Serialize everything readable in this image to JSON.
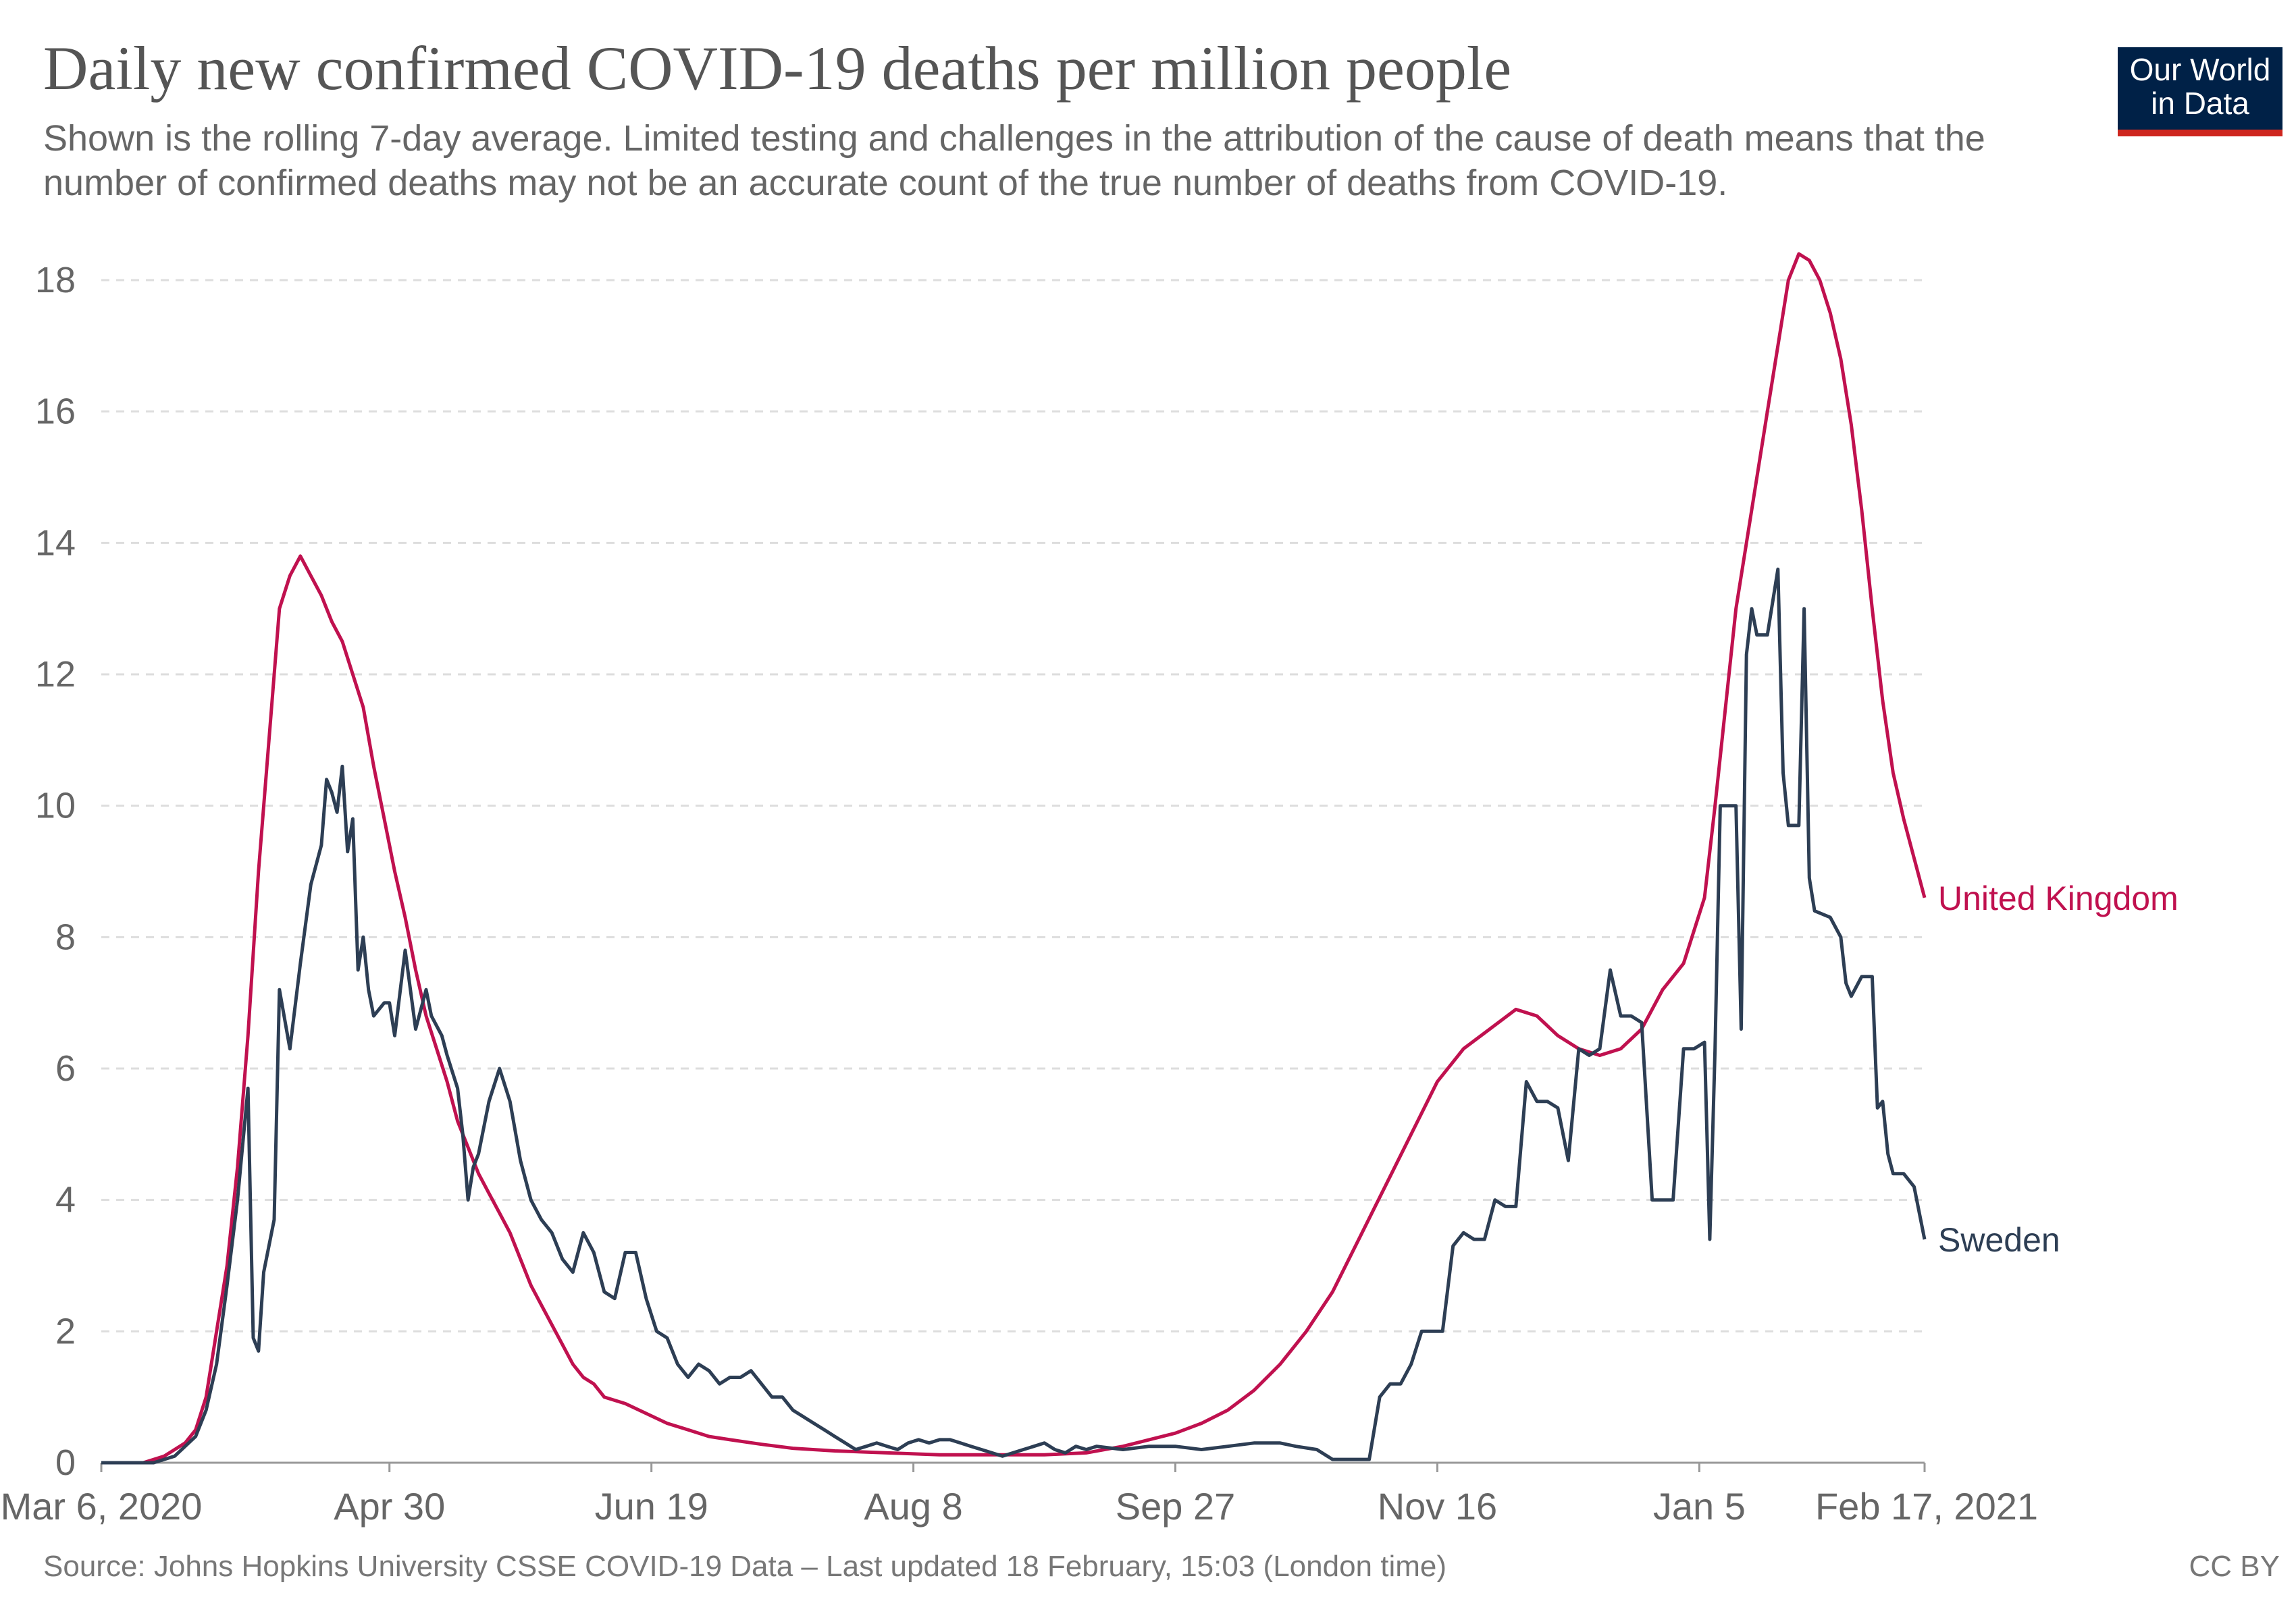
{
  "header": {
    "title": "Daily new confirmed COVID-19 deaths per million people",
    "subtitle": "Shown is the rolling 7-day average. Limited testing and challenges in the attribution of the cause of death means that the number of confirmed deaths may not be an accurate count of the true number of deaths from COVID-19.",
    "logo_text": "Our World in Data"
  },
  "footer": {
    "source": "Source: Johns Hopkins University CSSE COVID-19 Data – Last updated 18 February, 15:03 (London time)",
    "license": "CC BY"
  },
  "chart_data": {
    "type": "line",
    "x_tick_labels": [
      "Mar 6, 2020",
      "Apr 30",
      "Jun 19",
      "Aug 8",
      "Sep 27",
      "Nov 16",
      "Jan 5",
      "Feb 17, 2021"
    ],
    "x_tick_days": [
      0,
      55,
      105,
      155,
      205,
      255,
      305,
      348
    ],
    "x_start_date": "2020-03-06",
    "x_end_date": "2021-02-17",
    "ylim": [
      0,
      18
    ],
    "y_ticks": [
      0,
      2,
      4,
      6,
      8,
      10,
      12,
      14,
      16,
      18
    ],
    "grid": true,
    "legend": "line-end labels",
    "series": [
      {
        "name": "United Kingdom",
        "color": "#c0114f",
        "points": [
          [
            0,
            0
          ],
          [
            8,
            0
          ],
          [
            12,
            0.1
          ],
          [
            16,
            0.3
          ],
          [
            18,
            0.5
          ],
          [
            20,
            1.0
          ],
          [
            22,
            2.0
          ],
          [
            24,
            3.0
          ],
          [
            26,
            4.5
          ],
          [
            28,
            6.5
          ],
          [
            30,
            9.0
          ],
          [
            32,
            11.0
          ],
          [
            34,
            13.0
          ],
          [
            36,
            13.5
          ],
          [
            38,
            13.8
          ],
          [
            40,
            13.5
          ],
          [
            42,
            13.2
          ],
          [
            44,
            12.8
          ],
          [
            46,
            12.5
          ],
          [
            48,
            12.0
          ],
          [
            50,
            11.5
          ],
          [
            52,
            10.6
          ],
          [
            54,
            9.8
          ],
          [
            56,
            9.0
          ],
          [
            58,
            8.3
          ],
          [
            60,
            7.5
          ],
          [
            62,
            6.8
          ],
          [
            64,
            6.3
          ],
          [
            66,
            5.8
          ],
          [
            68,
            5.2
          ],
          [
            70,
            4.8
          ],
          [
            72,
            4.4
          ],
          [
            74,
            4.1
          ],
          [
            76,
            3.8
          ],
          [
            78,
            3.5
          ],
          [
            80,
            3.1
          ],
          [
            82,
            2.7
          ],
          [
            84,
            2.4
          ],
          [
            86,
            2.1
          ],
          [
            88,
            1.8
          ],
          [
            90,
            1.5
          ],
          [
            92,
            1.3
          ],
          [
            94,
            1.2
          ],
          [
            96,
            1.0
          ],
          [
            100,
            0.9
          ],
          [
            104,
            0.75
          ],
          [
            108,
            0.6
          ],
          [
            112,
            0.5
          ],
          [
            116,
            0.4
          ],
          [
            120,
            0.35
          ],
          [
            126,
            0.28
          ],
          [
            132,
            0.22
          ],
          [
            140,
            0.18
          ],
          [
            150,
            0.15
          ],
          [
            160,
            0.12
          ],
          [
            170,
            0.12
          ],
          [
            180,
            0.12
          ],
          [
            188,
            0.15
          ],
          [
            195,
            0.25
          ],
          [
            200,
            0.35
          ],
          [
            205,
            0.45
          ],
          [
            210,
            0.6
          ],
          [
            215,
            0.8
          ],
          [
            220,
            1.1
          ],
          [
            225,
            1.5
          ],
          [
            230,
            2.0
          ],
          [
            235,
            2.6
          ],
          [
            240,
            3.4
          ],
          [
            245,
            4.2
          ],
          [
            250,
            5.0
          ],
          [
            255,
            5.8
          ],
          [
            260,
            6.3
          ],
          [
            265,
            6.6
          ],
          [
            270,
            6.9
          ],
          [
            274,
            6.8
          ],
          [
            278,
            6.5
          ],
          [
            282,
            6.3
          ],
          [
            286,
            6.2
          ],
          [
            290,
            6.3
          ],
          [
            294,
            6.6
          ],
          [
            298,
            7.2
          ],
          [
            302,
            7.6
          ],
          [
            306,
            8.6
          ],
          [
            308,
            10.0
          ],
          [
            310,
            11.5
          ],
          [
            312,
            13.0
          ],
          [
            314,
            14.0
          ],
          [
            316,
            15.0
          ],
          [
            318,
            16.0
          ],
          [
            320,
            17.0
          ],
          [
            322,
            18.0
          ],
          [
            324,
            18.4
          ],
          [
            326,
            18.3
          ],
          [
            328,
            18.0
          ],
          [
            330,
            17.5
          ],
          [
            332,
            16.8
          ],
          [
            334,
            15.8
          ],
          [
            336,
            14.5
          ],
          [
            338,
            13.0
          ],
          [
            340,
            11.6
          ],
          [
            342,
            10.5
          ],
          [
            344,
            9.8
          ],
          [
            346,
            9.2
          ],
          [
            348,
            8.6
          ]
        ]
      },
      {
        "name": "Sweden",
        "color": "#2d3e54",
        "points": [
          [
            0,
            0
          ],
          [
            10,
            0
          ],
          [
            14,
            0.1
          ],
          [
            18,
            0.4
          ],
          [
            20,
            0.8
          ],
          [
            22,
            1.5
          ],
          [
            24,
            2.7
          ],
          [
            26,
            4.0
          ],
          [
            28,
            5.7
          ],
          [
            29,
            1.9
          ],
          [
            30,
            1.7
          ],
          [
            31,
            2.9
          ],
          [
            33,
            3.7
          ],
          [
            34,
            7.2
          ],
          [
            36,
            6.3
          ],
          [
            38,
            7.6
          ],
          [
            40,
            8.8
          ],
          [
            42,
            9.4
          ],
          [
            43,
            10.4
          ],
          [
            44,
            10.2
          ],
          [
            45,
            9.9
          ],
          [
            46,
            10.6
          ],
          [
            47,
            9.3
          ],
          [
            48,
            9.8
          ],
          [
            49,
            7.5
          ],
          [
            50,
            8.0
          ],
          [
            51,
            7.2
          ],
          [
            52,
            6.8
          ],
          [
            54,
            7.0
          ],
          [
            55,
            7.0
          ],
          [
            56,
            6.5
          ],
          [
            58,
            7.8
          ],
          [
            60,
            6.6
          ],
          [
            62,
            7.2
          ],
          [
            63,
            6.8
          ],
          [
            65,
            6.5
          ],
          [
            66,
            6.2
          ],
          [
            68,
            5.7
          ],
          [
            69,
            5.0
          ],
          [
            70,
            4.0
          ],
          [
            71,
            4.5
          ],
          [
            72,
            4.7
          ],
          [
            74,
            5.5
          ],
          [
            76,
            6.0
          ],
          [
            78,
            5.5
          ],
          [
            80,
            4.6
          ],
          [
            82,
            4.0
          ],
          [
            84,
            3.7
          ],
          [
            86,
            3.5
          ],
          [
            88,
            3.1
          ],
          [
            90,
            2.9
          ],
          [
            92,
            3.5
          ],
          [
            94,
            3.2
          ],
          [
            96,
            2.6
          ],
          [
            98,
            2.5
          ],
          [
            100,
            3.2
          ],
          [
            102,
            3.2
          ],
          [
            104,
            2.5
          ],
          [
            106,
            2.0
          ],
          [
            108,
            1.9
          ],
          [
            110,
            1.5
          ],
          [
            112,
            1.3
          ],
          [
            114,
            1.5
          ],
          [
            116,
            1.4
          ],
          [
            118,
            1.2
          ],
          [
            120,
            1.3
          ],
          [
            122,
            1.3
          ],
          [
            124,
            1.4
          ],
          [
            126,
            1.2
          ],
          [
            128,
            1.0
          ],
          [
            130,
            1.0
          ],
          [
            132,
            0.8
          ],
          [
            134,
            0.7
          ],
          [
            136,
            0.6
          ],
          [
            138,
            0.5
          ],
          [
            140,
            0.4
          ],
          [
            142,
            0.3
          ],
          [
            144,
            0.2
          ],
          [
            146,
            0.25
          ],
          [
            148,
            0.3
          ],
          [
            150,
            0.25
          ],
          [
            152,
            0.2
          ],
          [
            154,
            0.3
          ],
          [
            156,
            0.35
          ],
          [
            158,
            0.3
          ],
          [
            160,
            0.35
          ],
          [
            162,
            0.35
          ],
          [
            164,
            0.3
          ],
          [
            166,
            0.25
          ],
          [
            168,
            0.2
          ],
          [
            170,
            0.15
          ],
          [
            172,
            0.1
          ],
          [
            174,
            0.15
          ],
          [
            176,
            0.2
          ],
          [
            178,
            0.25
          ],
          [
            180,
            0.3
          ],
          [
            182,
            0.2
          ],
          [
            184,
            0.15
          ],
          [
            186,
            0.25
          ],
          [
            188,
            0.2
          ],
          [
            190,
            0.25
          ],
          [
            195,
            0.2
          ],
          [
            200,
            0.25
          ],
          [
            205,
            0.25
          ],
          [
            210,
            0.2
          ],
          [
            215,
            0.25
          ],
          [
            220,
            0.3
          ],
          [
            225,
            0.3
          ],
          [
            228,
            0.25
          ],
          [
            232,
            0.2
          ],
          [
            235,
            0.05
          ],
          [
            240,
            0.05
          ],
          [
            242,
            0.05
          ],
          [
            244,
            1.0
          ],
          [
            246,
            1.2
          ],
          [
            248,
            1.2
          ],
          [
            250,
            1.5
          ],
          [
            252,
            2.0
          ],
          [
            254,
            2.0
          ],
          [
            256,
            2.0
          ],
          [
            258,
            3.3
          ],
          [
            260,
            3.5
          ],
          [
            262,
            3.4
          ],
          [
            264,
            3.4
          ],
          [
            266,
            4.0
          ],
          [
            268,
            3.9
          ],
          [
            270,
            3.9
          ],
          [
            272,
            5.8
          ],
          [
            274,
            5.5
          ],
          [
            276,
            5.5
          ],
          [
            278,
            5.4
          ],
          [
            280,
            4.6
          ],
          [
            282,
            6.3
          ],
          [
            284,
            6.2
          ],
          [
            286,
            6.3
          ],
          [
            288,
            7.5
          ],
          [
            290,
            6.8
          ],
          [
            292,
            6.8
          ],
          [
            294,
            6.7
          ],
          [
            296,
            4.0
          ],
          [
            298,
            4.0
          ],
          [
            300,
            4.0
          ],
          [
            302,
            6.3
          ],
          [
            304,
            6.3
          ],
          [
            306,
            6.4
          ],
          [
            307,
            3.4
          ],
          [
            308,
            6.3
          ],
          [
            309,
            10.0
          ],
          [
            312,
            10.0
          ],
          [
            313,
            6.6
          ],
          [
            314,
            12.3
          ],
          [
            315,
            13.0
          ],
          [
            316,
            12.6
          ],
          [
            318,
            12.6
          ],
          [
            320,
            13.6
          ],
          [
            321,
            10.5
          ],
          [
            322,
            9.7
          ],
          [
            324,
            9.7
          ],
          [
            325,
            13.0
          ],
          [
            326,
            8.9
          ],
          [
            327,
            8.4
          ],
          [
            330,
            8.3
          ],
          [
            332,
            8.0
          ],
          [
            333,
            7.3
          ],
          [
            334,
            7.1
          ],
          [
            336,
            7.4
          ],
          [
            338,
            7.4
          ],
          [
            339,
            5.4
          ],
          [
            340,
            5.5
          ],
          [
            341,
            4.7
          ],
          [
            342,
            4.4
          ],
          [
            344,
            4.4
          ],
          [
            346,
            4.2
          ],
          [
            348,
            3.4
          ]
        ]
      }
    ]
  }
}
